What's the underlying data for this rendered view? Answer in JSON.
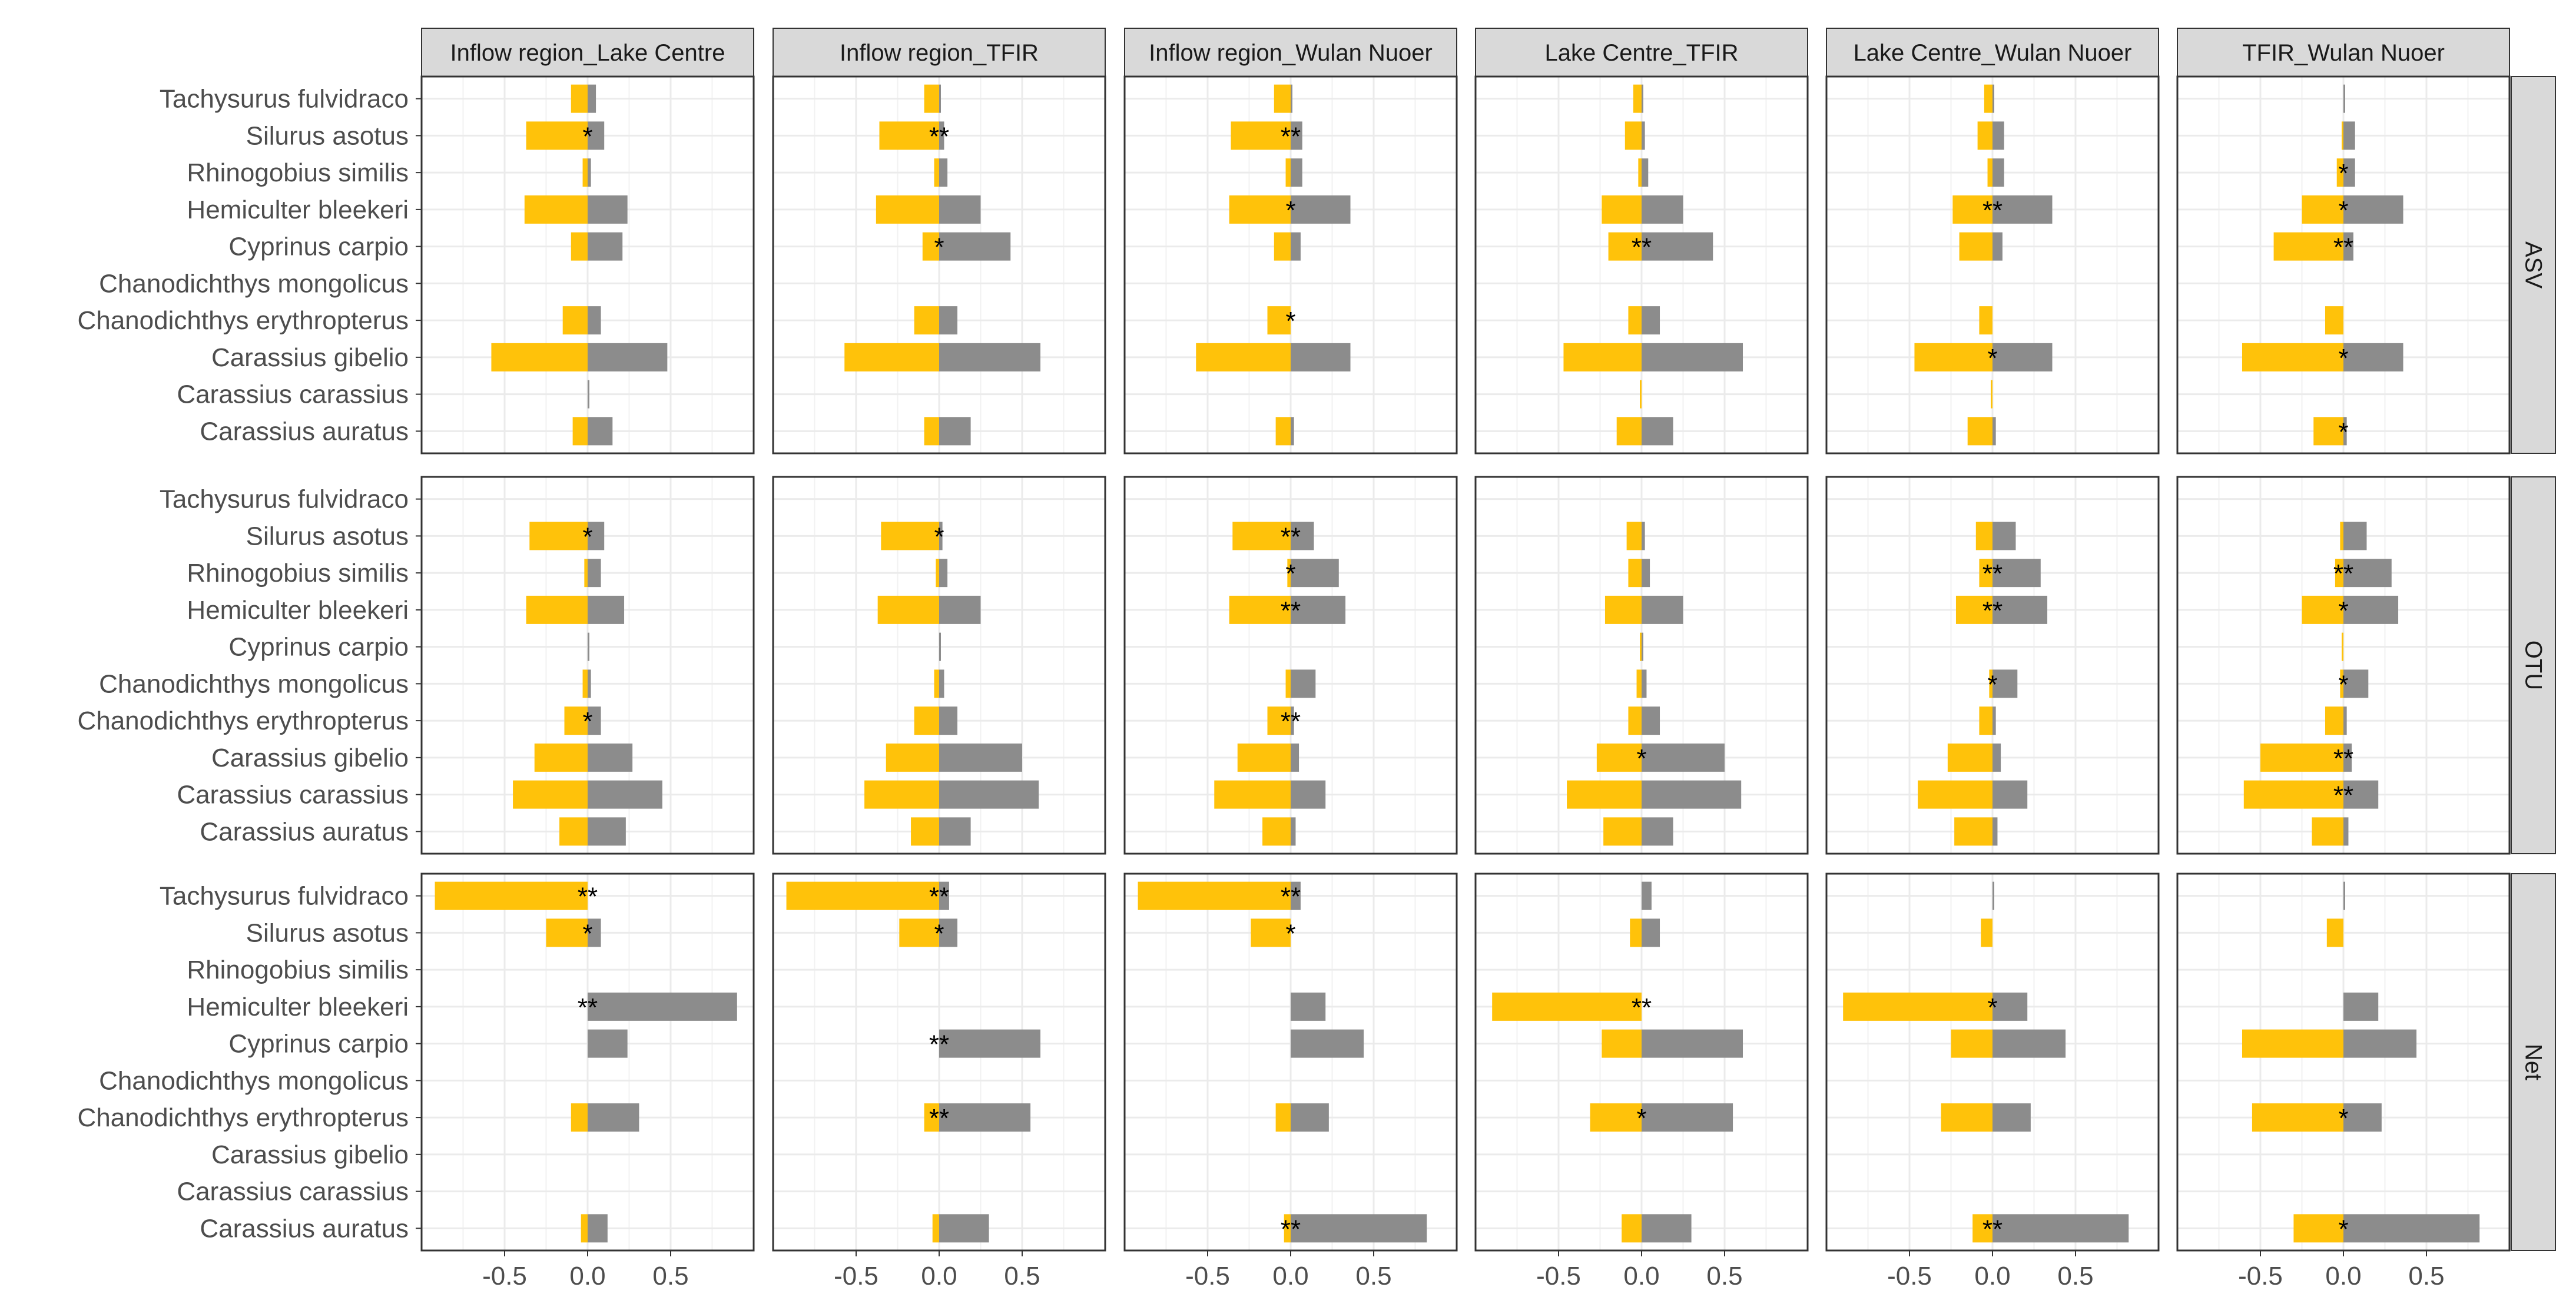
{
  "chart_data": {
    "type": "bar",
    "orientation": "horizontal",
    "title": "",
    "xlabel": "",
    "ylabel": "",
    "xlim": [
      -1.0,
      1.0
    ],
    "xticks": [
      -0.5,
      0.0,
      0.5
    ],
    "xtick_labels": [
      "-0.5",
      "0.0",
      "0.5"
    ],
    "legend": "none",
    "grid": true,
    "colors": {
      "negative": "#FFC20A",
      "positive": "#8C8C8C",
      "strip_bg": "#D9D9D9",
      "grid": "#EBEBEB",
      "border": "#333333"
    },
    "categories": [
      "Tachysurus fulvidraco",
      "Silurus asotus",
      "Rhinogobius similis",
      "Hemiculter bleekeri",
      "Cyprinus carpio",
      "Chanodichthys mongolicus",
      "Chanodichthys erythropterus",
      "Carassius gibelio",
      "Carassius carassius",
      "Carassius auratus"
    ],
    "columns": [
      "Inflow region_Lake Centre",
      "Inflow region_TFIR",
      "Inflow region_Wulan Nuoer",
      "Lake Centre_TFIR",
      "Lake Centre_Wulan Nuoer",
      "TFIR_Wulan Nuoer"
    ],
    "rows": [
      "ASV",
      "OTU",
      "Net"
    ],
    "panels": [
      [
        {
          "neg": [
            -0.1,
            -0.37,
            -0.03,
            -0.38,
            -0.1,
            null,
            -0.15,
            -0.58,
            null,
            -0.09
          ],
          "pos": [
            0.05,
            0.1,
            0.02,
            0.24,
            0.21,
            null,
            0.08,
            0.48,
            0.01,
            0.15
          ],
          "sig": [
            null,
            "*",
            null,
            null,
            null,
            null,
            null,
            null,
            null,
            null
          ]
        },
        {
          "neg": [
            -0.09,
            -0.36,
            -0.03,
            -0.38,
            -0.1,
            null,
            -0.15,
            -0.57,
            null,
            -0.09
          ],
          "pos": [
            0.01,
            0.03,
            0.05,
            0.25,
            0.43,
            null,
            0.11,
            0.61,
            null,
            0.19
          ],
          "sig": [
            null,
            "**",
            null,
            null,
            "*",
            null,
            null,
            null,
            null,
            null
          ]
        },
        {
          "neg": [
            -0.1,
            -0.36,
            -0.03,
            -0.37,
            -0.1,
            null,
            -0.14,
            -0.57,
            null,
            -0.09
          ],
          "pos": [
            0.01,
            0.07,
            0.07,
            0.36,
            0.06,
            null,
            null,
            0.36,
            null,
            0.02
          ],
          "sig": [
            null,
            "**",
            null,
            "*",
            null,
            null,
            "*",
            null,
            null,
            null
          ]
        },
        {
          "neg": [
            -0.05,
            -0.1,
            -0.02,
            -0.24,
            -0.2,
            null,
            -0.08,
            -0.47,
            -0.01,
            -0.15
          ],
          "pos": [
            0.01,
            0.02,
            0.04,
            0.25,
            0.43,
            null,
            0.11,
            0.61,
            null,
            0.19
          ],
          "sig": [
            null,
            null,
            null,
            null,
            "**",
            null,
            null,
            null,
            null,
            null
          ]
        },
        {
          "neg": [
            -0.05,
            -0.09,
            -0.03,
            -0.24,
            -0.2,
            null,
            -0.08,
            -0.47,
            -0.01,
            -0.15
          ],
          "pos": [
            0.01,
            0.07,
            0.07,
            0.36,
            0.06,
            null,
            null,
            0.36,
            null,
            0.02
          ],
          "sig": [
            null,
            null,
            null,
            "**",
            null,
            null,
            null,
            "*",
            null,
            null
          ]
        },
        {
          "neg": [
            null,
            -0.01,
            -0.04,
            -0.25,
            -0.42,
            null,
            -0.11,
            -0.61,
            null,
            -0.18
          ],
          "pos": [
            0.01,
            0.07,
            0.07,
            0.36,
            0.06,
            null,
            null,
            0.36,
            null,
            0.02
          ],
          "sig": [
            null,
            null,
            "*",
            "*",
            "**",
            null,
            null,
            "*",
            null,
            "*"
          ]
        }
      ],
      [
        {
          "neg": [
            null,
            -0.35,
            -0.02,
            -0.37,
            null,
            -0.03,
            -0.14,
            -0.32,
            -0.45,
            -0.17
          ],
          "pos": [
            null,
            0.1,
            0.08,
            0.22,
            0.01,
            0.02,
            0.08,
            0.27,
            0.45,
            0.23
          ],
          "sig": [
            null,
            "*",
            null,
            null,
            null,
            null,
            "*",
            null,
            null,
            null
          ]
        },
        {
          "neg": [
            null,
            -0.35,
            -0.02,
            -0.37,
            null,
            -0.03,
            -0.15,
            -0.32,
            -0.45,
            -0.17
          ],
          "pos": [
            null,
            0.02,
            0.05,
            0.25,
            0.01,
            0.03,
            0.11,
            0.5,
            0.6,
            0.19
          ],
          "sig": [
            null,
            "*",
            null,
            null,
            null,
            null,
            null,
            null,
            null,
            null
          ]
        },
        {
          "neg": [
            null,
            -0.35,
            -0.02,
            -0.37,
            null,
            -0.03,
            -0.14,
            -0.32,
            -0.46,
            -0.17
          ],
          "pos": [
            null,
            0.14,
            0.29,
            0.33,
            null,
            0.15,
            0.02,
            0.05,
            0.21,
            0.03
          ],
          "sig": [
            null,
            "**",
            "*",
            "**",
            null,
            null,
            "**",
            null,
            null,
            null
          ]
        },
        {
          "neg": [
            null,
            -0.09,
            -0.08,
            -0.22,
            -0.01,
            -0.03,
            -0.08,
            -0.27,
            -0.45,
            -0.23
          ],
          "pos": [
            null,
            0.02,
            0.05,
            0.25,
            0.01,
            0.03,
            0.11,
            0.5,
            0.6,
            0.19
          ],
          "sig": [
            null,
            null,
            null,
            null,
            null,
            null,
            null,
            "*",
            null,
            null
          ]
        },
        {
          "neg": [
            null,
            -0.1,
            -0.08,
            -0.22,
            null,
            -0.02,
            -0.08,
            -0.27,
            -0.45,
            -0.23
          ],
          "pos": [
            null,
            0.14,
            0.29,
            0.33,
            null,
            0.15,
            0.02,
            0.05,
            0.21,
            0.03
          ],
          "sig": [
            null,
            null,
            "**",
            "**",
            null,
            "*",
            null,
            null,
            null,
            null
          ]
        },
        {
          "neg": [
            null,
            -0.02,
            -0.05,
            -0.25,
            -0.01,
            -0.02,
            -0.11,
            -0.5,
            -0.6,
            -0.19
          ],
          "pos": [
            null,
            0.14,
            0.29,
            0.33,
            null,
            0.15,
            0.02,
            0.05,
            0.21,
            0.03
          ],
          "sig": [
            null,
            null,
            "**",
            "*",
            null,
            "*",
            null,
            "**",
            "**",
            null
          ]
        }
      ],
      [
        {
          "neg": [
            -0.92,
            -0.25,
            null,
            null,
            null,
            null,
            -0.1,
            null,
            null,
            -0.04
          ],
          "pos": [
            null,
            0.08,
            null,
            0.9,
            0.24,
            null,
            0.31,
            null,
            null,
            0.12
          ],
          "sig": [
            "**",
            "*",
            null,
            "**",
            null,
            null,
            null,
            null,
            null,
            null
          ]
        },
        {
          "neg": [
            -0.92,
            -0.24,
            null,
            null,
            null,
            null,
            -0.09,
            null,
            null,
            -0.04
          ],
          "pos": [
            0.06,
            0.11,
            null,
            null,
            0.61,
            null,
            0.55,
            null,
            null,
            0.3
          ],
          "sig": [
            "**",
            "*",
            null,
            null,
            "**",
            null,
            "**",
            null,
            null,
            null
          ]
        },
        {
          "neg": [
            -0.92,
            -0.24,
            null,
            null,
            null,
            null,
            -0.09,
            null,
            null,
            -0.04
          ],
          "pos": [
            0.06,
            null,
            null,
            0.21,
            0.44,
            null,
            0.23,
            null,
            null,
            0.82
          ],
          "sig": [
            "**",
            "*",
            null,
            null,
            null,
            null,
            null,
            null,
            null,
            "**"
          ]
        },
        {
          "neg": [
            null,
            -0.07,
            null,
            -0.9,
            -0.24,
            null,
            -0.31,
            null,
            null,
            -0.12
          ],
          "pos": [
            0.06,
            0.11,
            null,
            null,
            0.61,
            null,
            0.55,
            null,
            null,
            0.3
          ],
          "sig": [
            null,
            null,
            null,
            "**",
            null,
            null,
            "*",
            null,
            null,
            null
          ]
        },
        {
          "neg": [
            null,
            -0.07,
            null,
            -0.9,
            -0.25,
            null,
            -0.31,
            null,
            null,
            -0.12
          ],
          "pos": [
            0.01,
            null,
            null,
            0.21,
            0.44,
            null,
            0.23,
            null,
            null,
            0.82
          ],
          "sig": [
            null,
            null,
            null,
            "*",
            null,
            null,
            null,
            null,
            null,
            "**"
          ]
        },
        {
          "neg": [
            null,
            -0.1,
            null,
            null,
            -0.61,
            null,
            -0.55,
            null,
            null,
            -0.3
          ],
          "pos": [
            0.01,
            null,
            null,
            0.21,
            0.44,
            null,
            0.23,
            null,
            null,
            0.82
          ],
          "sig": [
            null,
            null,
            null,
            null,
            null,
            null,
            "*",
            null,
            null,
            "*"
          ]
        }
      ]
    ]
  }
}
